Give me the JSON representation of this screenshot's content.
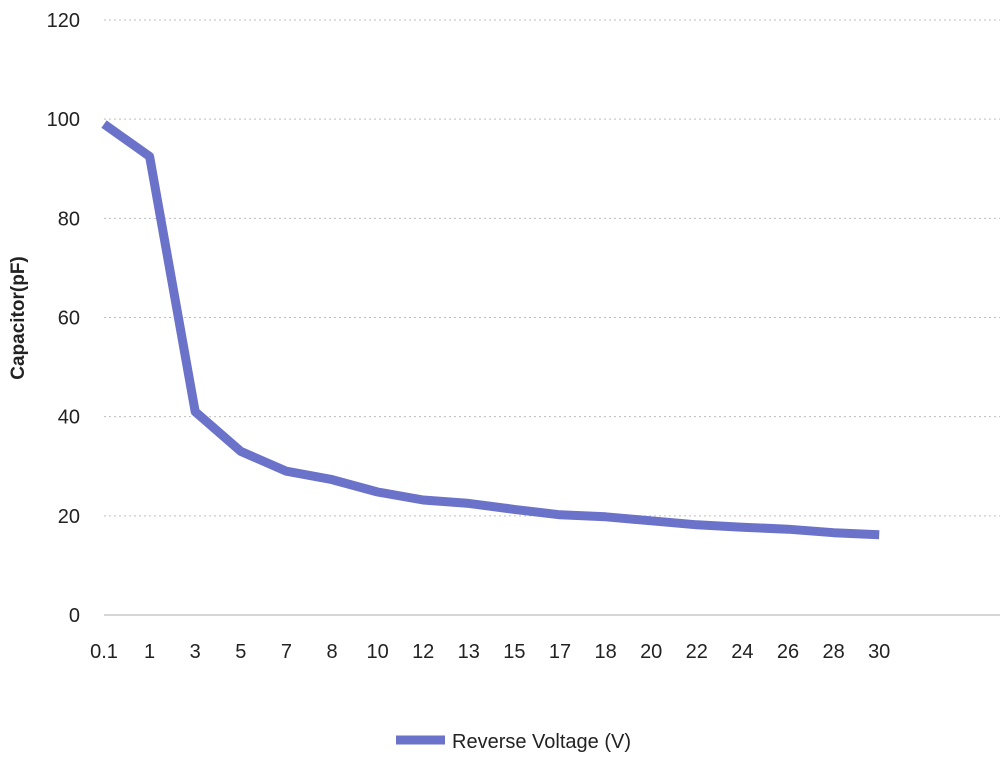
{
  "chart_data": {
    "type": "line",
    "title": "",
    "xlabel": "",
    "ylabel": "Capacitor(pF)",
    "categories": [
      "0.1",
      "1",
      "3",
      "5",
      "7",
      "8",
      "10",
      "12",
      "13",
      "15",
      "17",
      "18",
      "20",
      "22",
      "24",
      "26",
      "28",
      "30"
    ],
    "series": [
      {
        "name": "Reverse Voltage (V)",
        "values": [
          99,
          92.5,
          41,
          33,
          29,
          27.3,
          24.8,
          23.2,
          22.5,
          21.3,
          20.2,
          19.8,
          19,
          18.2,
          17.7,
          17.3,
          16.6,
          16.2
        ],
        "color": "#6b72c9"
      }
    ],
    "yticks": [
      "0",
      "20",
      "40",
      "60",
      "80",
      "100",
      "120"
    ],
    "ylim": [
      0,
      120
    ],
    "grid": true,
    "grid_style": "dotted",
    "legend": "bottom"
  }
}
